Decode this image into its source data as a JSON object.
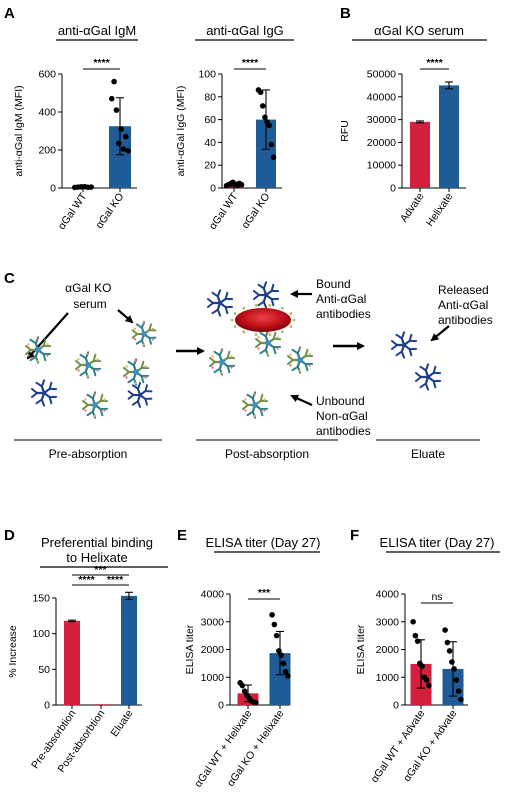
{
  "panel_labels": {
    "A": "A",
    "B": "B",
    "C": "C",
    "D": "D",
    "E": "E",
    "F": "F"
  },
  "colors": {
    "red": "#d21f3c",
    "blue": "#1f5b97",
    "dark_blue": "#1d3f8a",
    "rbc_red": "#c0101a"
  },
  "chart_data": [
    {
      "id": "A1",
      "type": "bar",
      "title": "anti-αGal IgM",
      "xlabel": "",
      "ylabel": "anti-αGal IgM (MFI)",
      "categories": [
        "αGal WT",
        "αGal KO"
      ],
      "values": [
        5,
        325
      ],
      "errors": [
        4,
        150
      ],
      "ylim": [
        0,
        600
      ],
      "yticks": [
        "0",
        "200",
        "400",
        "600"
      ],
      "significance": "****",
      "grid": false,
      "points": [
        [
          3,
          5,
          6,
          7,
          4,
          5
        ],
        [
          470,
          560,
          410,
          235,
          310,
          205,
          270,
          195
        ]
      ]
    },
    {
      "id": "A2",
      "type": "bar",
      "title": "anti-αGal IgG",
      "xlabel": "",
      "ylabel": "anti-αGal IgG (MFI)",
      "categories": [
        "αGal WT",
        "αGal KO"
      ],
      "values": [
        3,
        60
      ],
      "errors": [
        2,
        26
      ],
      "ylim": [
        0,
        100
      ],
      "yticks": [
        "0",
        "20",
        "40",
        "60",
        "80",
        "100"
      ],
      "significance": "****",
      "grid": false,
      "points": [
        [
          2,
          3,
          4,
          5,
          3,
          2,
          4,
          3
        ],
        [
          86,
          84,
          72,
          62,
          58,
          55,
          38,
          27
        ]
      ]
    },
    {
      "id": "B",
      "type": "bar",
      "title": "αGal KO serum",
      "xlabel": "",
      "ylabel": "RFU",
      "categories": [
        "Advate",
        "Helixate"
      ],
      "values": [
        29000,
        45000
      ],
      "errors": [
        400,
        1500
      ],
      "ylim": [
        0,
        50000
      ],
      "yticks": [
        "0",
        "10000",
        "20000",
        "30000",
        "40000",
        "50000"
      ],
      "significance": "****",
      "grid": false
    },
    {
      "id": "D",
      "type": "bar",
      "title": "Preferential binding\nto Helixate",
      "xlabel": "",
      "ylabel": "% Increase",
      "categories": [
        "Pre-absorbtion",
        "Post-absorbtion",
        "Eluate"
      ],
      "values": [
        118,
        1,
        153
      ],
      "errors": [
        1,
        0,
        5
      ],
      "ylim": [
        0,
        150
      ],
      "yticks": [
        "0",
        "50",
        "100",
        "150"
      ],
      "significance": [
        {
          "pair": [
            0,
            2
          ],
          "label": "***"
        },
        {
          "pair": [
            0,
            1
          ],
          "label": "****"
        },
        {
          "pair": [
            1,
            2
          ],
          "label": "****"
        }
      ],
      "grid": false
    },
    {
      "id": "E",
      "type": "bar",
      "title": "ELISA titer (Day 27)",
      "xlabel": "",
      "ylabel": "ELISA titer",
      "categories": [
        "αGal WT + Helixate",
        "αGal KO + Helixate"
      ],
      "values": [
        420,
        1870
      ],
      "errors": [
        300,
        780
      ],
      "ylim": [
        0,
        4000
      ],
      "yticks": [
        "0",
        "1000",
        "2000",
        "3000",
        "4000"
      ],
      "significance": "***",
      "grid": false,
      "points": [
        [
          800,
          700,
          500,
          350,
          250,
          150,
          100,
          80
        ],
        [
          3250,
          2900,
          2500,
          1950,
          1800,
          1500,
          1200,
          1050
        ]
      ]
    },
    {
      "id": "F",
      "type": "bar",
      "title": "ELISA titer (Day 27)",
      "xlabel": "",
      "ylabel": "ELISA titer",
      "categories": [
        "αGal WT + Advate",
        "αGal KO + Advate"
      ],
      "values": [
        1480,
        1300
      ],
      "errors": [
        870,
        980
      ],
      "ylim": [
        0,
        4000
      ],
      "yticks": [
        "0",
        "1000",
        "2000",
        "3000",
        "4000"
      ],
      "significance": "ns",
      "grid": false,
      "points": [
        [
          3000,
          2500,
          2300,
          1500,
          1400,
          1000,
          900,
          700
        ],
        [
          2700,
          2250,
          1950,
          1550,
          1300,
          900,
          500,
          200
        ]
      ]
    }
  ],
  "diagram": {
    "serum_label": "αGal KO\nserum",
    "bound_label": "Bound\nAnti-αGal\nantibodies",
    "unbound_label": "Unbound\nNon-αGal\nantibodies",
    "released_label": "Released\nAnti-αGal\nantibodies",
    "stage_pre": "Pre-absorption",
    "stage_post": "Post-absorption",
    "stage_eluate": "Eluate"
  }
}
